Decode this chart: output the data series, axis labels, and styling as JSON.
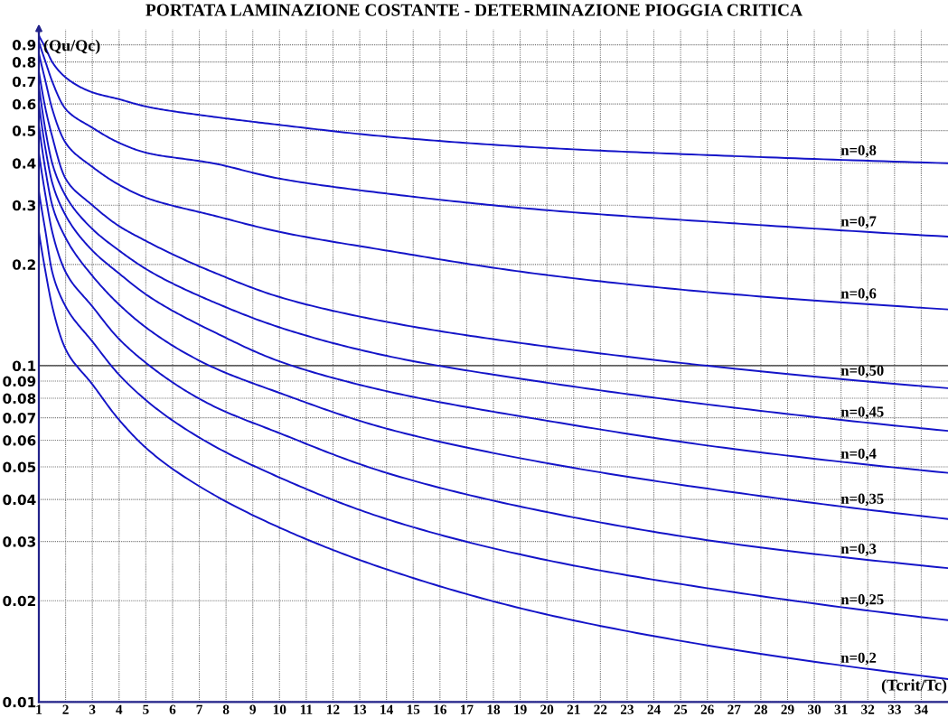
{
  "chart_data": {
    "type": "line",
    "title": "PORTATA LAMINAZIONE COSTANTE - DETERMINAZIONE PIOGGIA CRITICA",
    "xlabel": "(Tcrit/Tc)",
    "ylabel": "(Qu/Qc)",
    "x": [
      1,
      1.25,
      1.5,
      2,
      3,
      4,
      5,
      7.5,
      10,
      14,
      20,
      27,
      35
    ],
    "series": [
      {
        "name": "n=0,8",
        "color": "#1414c8",
        "values": [
          0.96,
          0.88,
          0.8,
          0.72,
          0.65,
          0.62,
          0.59,
          0.55,
          0.52,
          0.48,
          0.444,
          0.42,
          0.4
        ]
      },
      {
        "name": "n=0,7",
        "color": "#1414c8",
        "values": [
          0.92,
          0.8,
          0.7,
          0.58,
          0.51,
          0.46,
          0.43,
          0.4,
          0.36,
          0.325,
          0.29,
          0.265,
          0.242
        ]
      },
      {
        "name": "n=0,6",
        "color": "#1414c8",
        "values": [
          0.85,
          0.7,
          0.58,
          0.46,
          0.39,
          0.345,
          0.316,
          0.28,
          0.25,
          0.22,
          0.186,
          0.163,
          0.147
        ]
      },
      {
        "name": "n=0,50",
        "color": "#1414c8",
        "values": [
          0.75,
          0.58,
          0.48,
          0.36,
          0.3,
          0.26,
          0.235,
          0.19,
          0.16,
          0.135,
          0.114,
          0.098,
          0.0857
        ]
      },
      {
        "name": "n=0,45",
        "color": "#1414c8",
        "values": [
          0.68,
          0.5,
          0.4,
          0.32,
          0.255,
          0.22,
          0.194,
          0.155,
          0.13,
          0.107,
          0.089,
          0.075,
          0.064
        ]
      },
      {
        "name": "n=0,4",
        "color": "#1414c8",
        "values": [
          0.6,
          0.44,
          0.35,
          0.28,
          0.22,
          0.188,
          0.163,
          0.1265,
          0.103,
          0.084,
          0.0686,
          0.0565,
          0.048
        ]
      },
      {
        "name": "n=0,35",
        "color": "#1414c8",
        "values": [
          0.52,
          0.38,
          0.3,
          0.24,
          0.185,
          0.152,
          0.13,
          0.099,
          0.083,
          0.065,
          0.0513,
          0.042,
          0.035
        ]
      },
      {
        "name": "n=0,3",
        "color": "#1414c8",
        "values": [
          0.43,
          0.32,
          0.25,
          0.19,
          0.15,
          0.12,
          0.102,
          0.076,
          0.063,
          0.048,
          0.0367,
          0.0295,
          0.025
        ]
      },
      {
        "name": "n=0,25",
        "color": "#1414c8",
        "values": [
          0.33,
          0.25,
          0.19,
          0.15,
          0.118,
          0.094,
          0.079,
          0.058,
          0.0465,
          0.035,
          0.0264,
          0.0212,
          0.0175
        ]
      },
      {
        "name": "n=0,2",
        "color": "#1414c8",
        "values": [
          0.25,
          0.19,
          0.15,
          0.112,
          0.088,
          0.069,
          0.057,
          0.0415,
          0.033,
          0.0248,
          0.0182,
          0.0143,
          0.0117
        ]
      }
    ],
    "log": "y",
    "xlim": [
      1,
      35
    ],
    "ylim": [
      0.01,
      1
    ],
    "xticks": [
      1,
      2,
      3,
      4,
      5,
      6,
      7,
      8,
      9,
      10,
      11,
      12,
      13,
      14,
      15,
      16,
      17,
      18,
      19,
      20,
      21,
      22,
      23,
      24,
      25,
      26,
      27,
      28,
      29,
      30,
      31,
      32,
      33,
      34
    ],
    "yticks": [
      0.01,
      0.02,
      0.03,
      0.04,
      0.05,
      0.06,
      0.07,
      0.08,
      0.09,
      0.1,
      0.2,
      0.3,
      0.4,
      0.5,
      0.6,
      0.7,
      0.8,
      0.9
    ],
    "ref_lines": [
      {
        "axis": "y",
        "value": 0.1,
        "color": "#222222"
      }
    ],
    "grid": true,
    "legend": false,
    "marker": "none",
    "line_style": "solid"
  }
}
